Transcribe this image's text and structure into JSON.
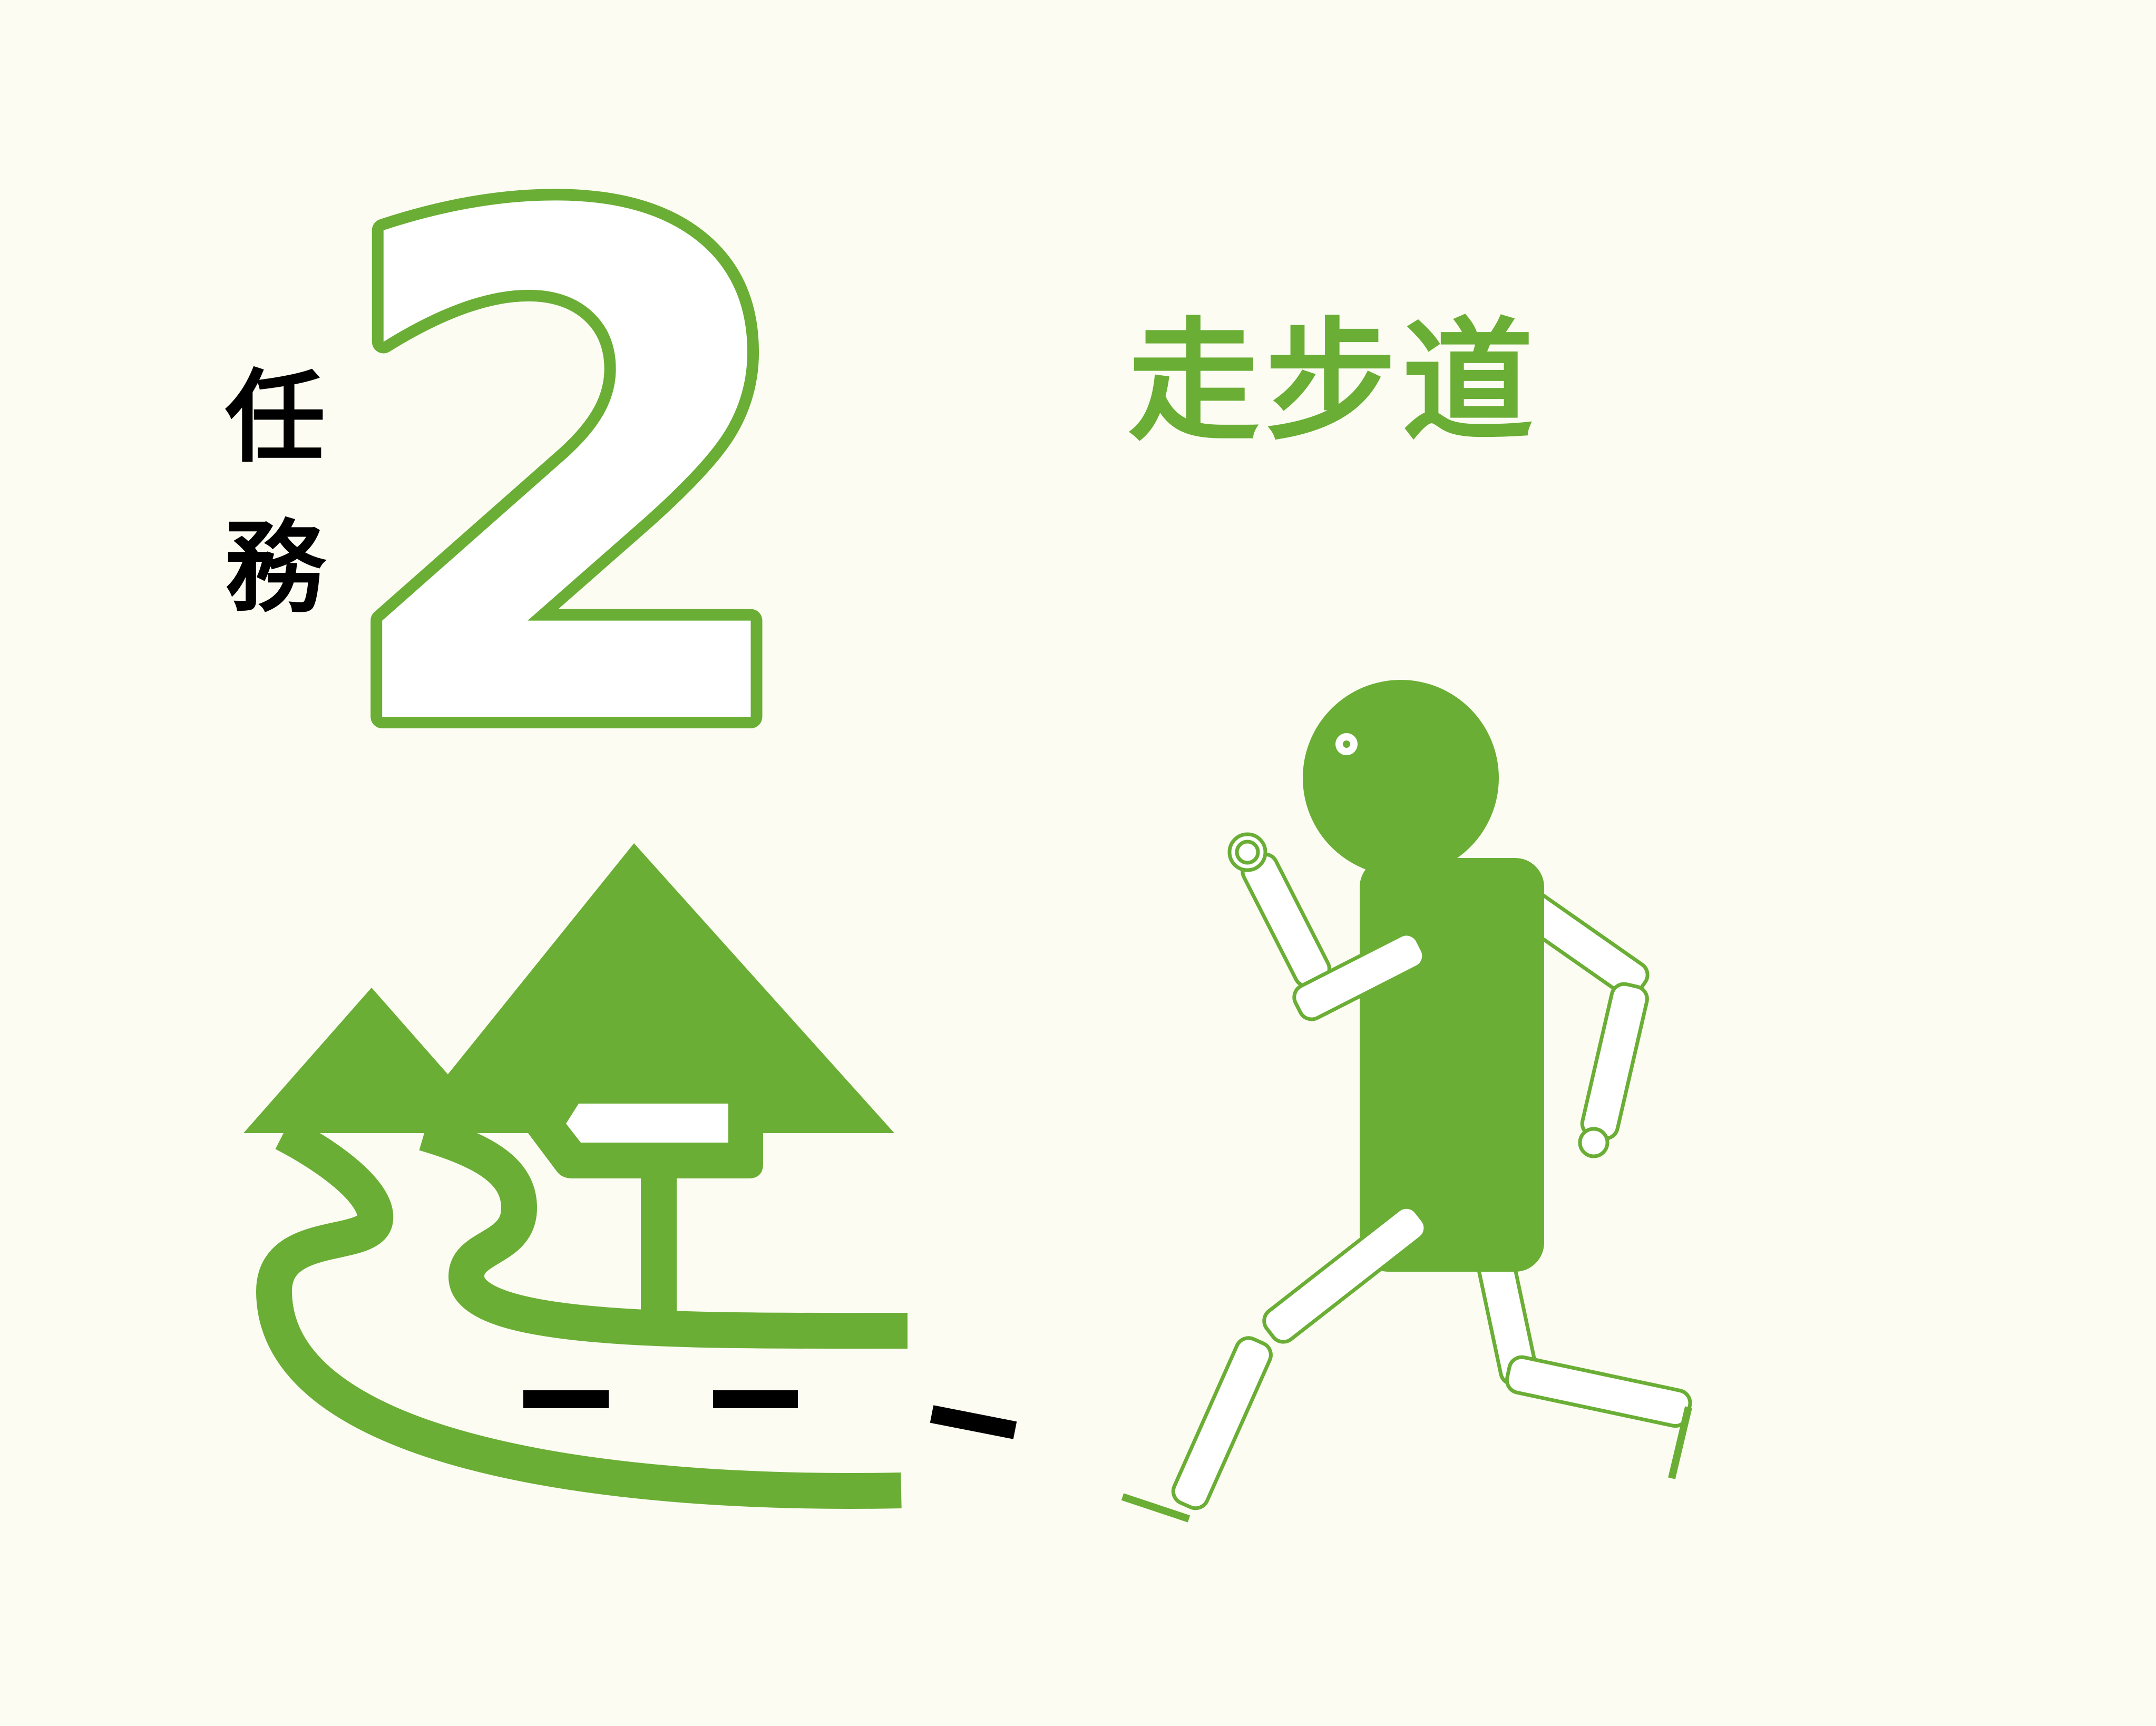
{
  "mission": {
    "label_char_1": "任",
    "label_char_2": "務",
    "number": "2"
  },
  "title": "走步道",
  "colors": {
    "background": "#FCFCF2",
    "accent_green": "#6AAE35",
    "text_black": "#000000",
    "white": "#FFFFFF"
  },
  "icons": [
    "mountain-icon",
    "trail-sign-icon",
    "winding-path-icon",
    "walking-person-icon"
  ]
}
